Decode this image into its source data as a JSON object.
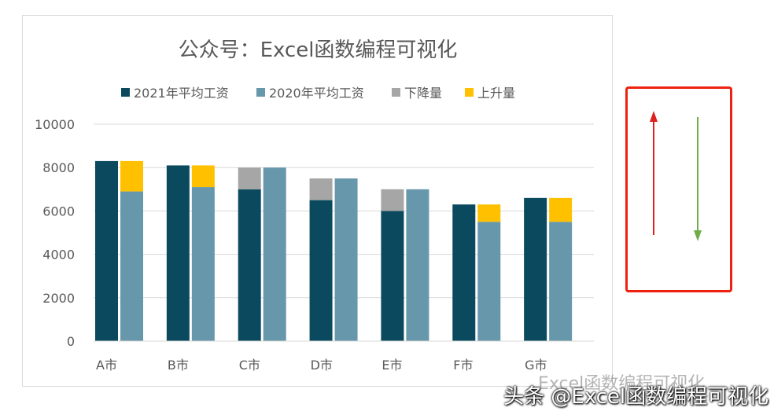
{
  "chart_data": {
    "type": "bar",
    "title": "公众号：Excel函数编程可视化",
    "categories": [
      "A市",
      "B市",
      "C市",
      "D市",
      "E市",
      "F市",
      "G市"
    ],
    "series": [
      {
        "name": "2021年平均工资",
        "values": [
          8300,
          8100,
          7000,
          6500,
          6000,
          6300,
          6600
        ]
      },
      {
        "name": "2020年平均工资",
        "values": [
          6900,
          7100,
          8000,
          7500,
          7000,
          5500,
          5500
        ]
      },
      {
        "name": "下降量",
        "values": [
          0,
          0,
          1000,
          1000,
          1000,
          0,
          0
        ]
      },
      {
        "name": "上升量",
        "values": [
          1400,
          1000,
          0,
          0,
          0,
          800,
          1100
        ]
      }
    ],
    "ylim": [
      0,
      10000
    ],
    "yticks": [
      "0",
      "2000",
      "4000",
      "6000",
      "8000",
      "10000"
    ],
    "xlabel": "",
    "ylabel": "",
    "grid": true,
    "legend_position": "top",
    "colors": {
      "2021": "#0b4a5e",
      "2020": "#6797ab",
      "decrease": "#a6a6a6",
      "increase": "#ffc000"
    }
  },
  "arrows": {
    "up_color": "#e01f1f",
    "down_color": "#70ad47"
  },
  "watermark": "Excel函数编程可视化",
  "footer": "头条 @Excel函数编程可视化"
}
